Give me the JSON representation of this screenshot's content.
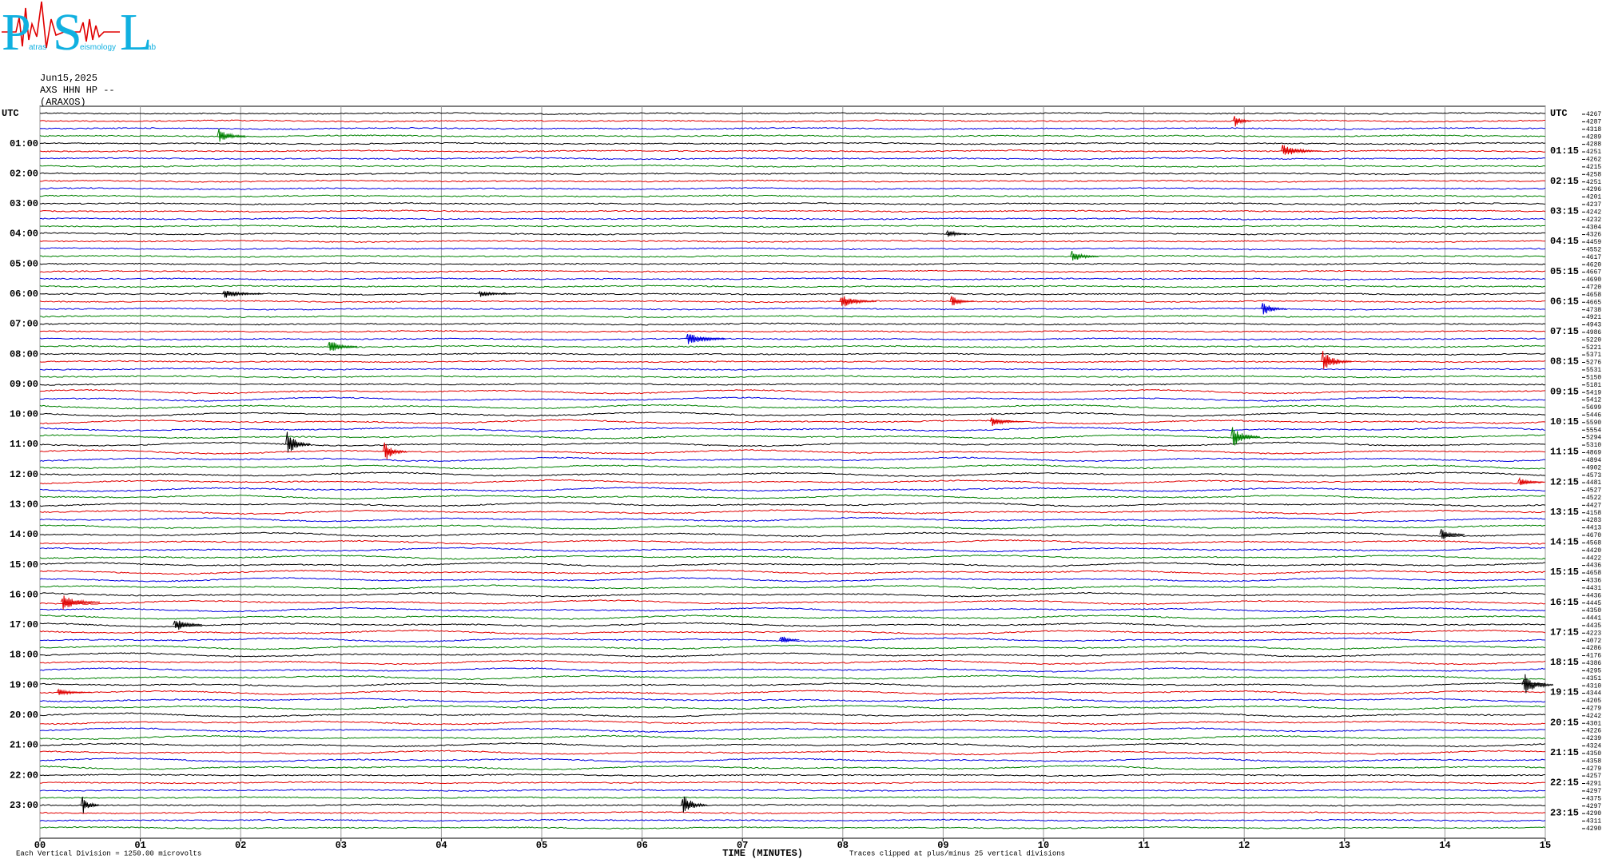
{
  "chart_data": {
    "type": "helicorder",
    "logo": {
      "letters": [
        "P",
        "S",
        "L"
      ],
      "words": [
        "atras",
        "eismology",
        "ab"
      ]
    },
    "date": "Jun15,2025",
    "channel": "AXS HHN HP --",
    "station": "(ARAXOS)",
    "row_colors": [
      "#000000",
      "#e00000",
      "#0000e0",
      "#008000"
    ],
    "left_labels": [
      "UTC",
      "01:00",
      "02:00",
      "03:00",
      "04:00",
      "05:00",
      "06:00",
      "07:00",
      "08:00",
      "09:00",
      "10:00",
      "11:00",
      "12:00",
      "13:00",
      "14:00",
      "15:00",
      "16:00",
      "17:00",
      "18:00",
      "19:00",
      "20:00",
      "21:00",
      "22:00",
      "23:00"
    ],
    "right_labels": [
      "UTC",
      "01:15",
      "02:15",
      "03:15",
      "04:15",
      "05:15",
      "06:15",
      "07:15",
      "08:15",
      "09:15",
      "10:15",
      "11:15",
      "12:15",
      "13:15",
      "14:15",
      "15:15",
      "16:15",
      "17:15",
      "18:15",
      "19:15",
      "20:15",
      "21:15",
      "22:15",
      "23:15"
    ],
    "right_values": [
      4267,
      4287,
      4318,
      4289,
      4288,
      4251,
      4262,
      4215,
      4258,
      4251,
      4296,
      4201,
      4237,
      4242,
      4232,
      4304,
      4326,
      4459,
      4552,
      4617,
      4620,
      4667,
      4690,
      4720,
      4658,
      4665,
      4738,
      4921,
      4943,
      4986,
      5220,
      5221,
      5371,
      5276,
      5531,
      5150,
      5181,
      5419,
      5412,
      5699,
      5446,
      5590,
      5554,
      5294,
      5310,
      4869,
      4894,
      4902,
      4573,
      4481,
      4527,
      4522,
      4427,
      4158,
      4283,
      4413,
      4670,
      4568,
      4420,
      4422,
      4436,
      4658,
      4336,
      4431,
      4436,
      4445,
      4350,
      4441,
      4435,
      4223,
      4072,
      4286,
      4176,
      4386,
      4295,
      4351,
      4310,
      4344,
      4205,
      4279,
      4242,
      4301,
      4226,
      4239,
      4324,
      4350,
      4358,
      4279,
      4257,
      4291,
      4297,
      4375,
      4297,
      4290,
      4311,
      4290
    ],
    "xlim": [
      0,
      15
    ],
    "xticks": [
      {
        "value": 0,
        "label": "00"
      },
      {
        "value": 1,
        "label": "01"
      },
      {
        "value": 2,
        "label": "02"
      },
      {
        "value": 3,
        "label": "03"
      },
      {
        "value": 4,
        "label": "04"
      },
      {
        "value": 5,
        "label": "05"
      },
      {
        "value": 6,
        "label": "06"
      },
      {
        "value": 7,
        "label": "07"
      },
      {
        "value": 8,
        "label": "08"
      },
      {
        "value": 9,
        "label": "09"
      },
      10,
      11,
      12,
      13,
      14,
      15
    ],
    "xlabel": "TIME (MINUTES)",
    "scale_note": "Each Vertical Division = 1250.00 microvolts",
    "clip_note": "Traces clipped at plus/minus 25 vertical divisions",
    "events": [
      {
        "row": 1,
        "minute": 11.92
      },
      {
        "row": 3,
        "minute": 1.8
      },
      {
        "row": 5,
        "minute": 12.4
      },
      {
        "row": 16,
        "minute": 9.06
      },
      {
        "row": 19,
        "minute": 10.3
      },
      {
        "row": 24,
        "minute": 1.85
      },
      {
        "row": 24,
        "minute": 4.4
      },
      {
        "row": 25,
        "minute": 9.1
      },
      {
        "row": 25,
        "minute": 8.0
      },
      {
        "row": 26,
        "minute": 12.2
      },
      {
        "row": 30,
        "minute": 6.47
      },
      {
        "row": 31,
        "minute": 2.9
      },
      {
        "row": 33,
        "minute": 12.8
      },
      {
        "row": 41,
        "minute": 9.5
      },
      {
        "row": 43,
        "minute": 11.9
      },
      {
        "row": 44,
        "minute": 2.48
      },
      {
        "row": 45,
        "minute": 3.45
      },
      {
        "row": 49,
        "minute": 14.76
      },
      {
        "row": 56,
        "minute": 13.98
      },
      {
        "row": 65,
        "minute": 0.24
      },
      {
        "row": 68,
        "minute": 1.36
      },
      {
        "row": 70,
        "minute": 7.4
      },
      {
        "row": 76,
        "minute": 14.8
      },
      {
        "row": 77,
        "minute": 0.2
      },
      {
        "row": 92,
        "minute": 0.44
      },
      {
        "row": 92,
        "minute": 6.42
      }
    ]
  }
}
